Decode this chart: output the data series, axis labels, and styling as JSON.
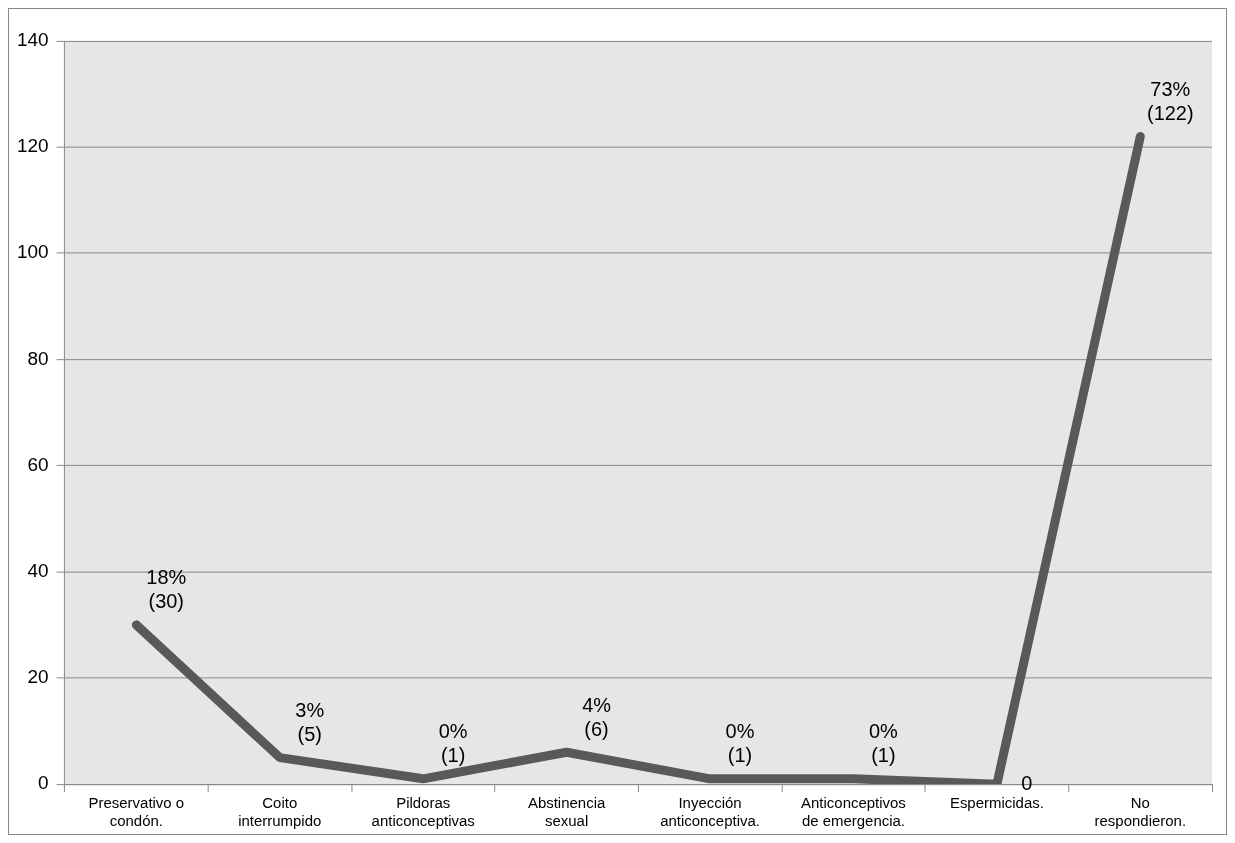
{
  "chart_data": {
    "type": "line",
    "categories": [
      "Preservativo o\ncondón.",
      "Coito\ninterrumpido",
      "Pildoras\nanticonceptivas",
      "Abstinencia\nsexual",
      "Inyección\nanticonceptiva.",
      "Anticonceptivos\nde emergencia.",
      "Espermicidas.",
      "No\nrespondieron."
    ],
    "series": [
      {
        "color": "#595959",
        "values": [
          30,
          5,
          1,
          6,
          1,
          1,
          0,
          122
        ],
        "value_labels": [
          "18%\n(30)",
          "3%\n(5)",
          "0%\n(1)",
          "4%\n(6)",
          "0%\n(1)",
          "0%\n(1)",
          "0",
          "73%\n(122)"
        ]
      }
    ],
    "ylim": [
      0,
      140
    ],
    "yticks": [
      0,
      20,
      40,
      60,
      80,
      100,
      120,
      140
    ],
    "grid": "y",
    "legend": false,
    "marker": "none",
    "line_style": "solid"
  }
}
